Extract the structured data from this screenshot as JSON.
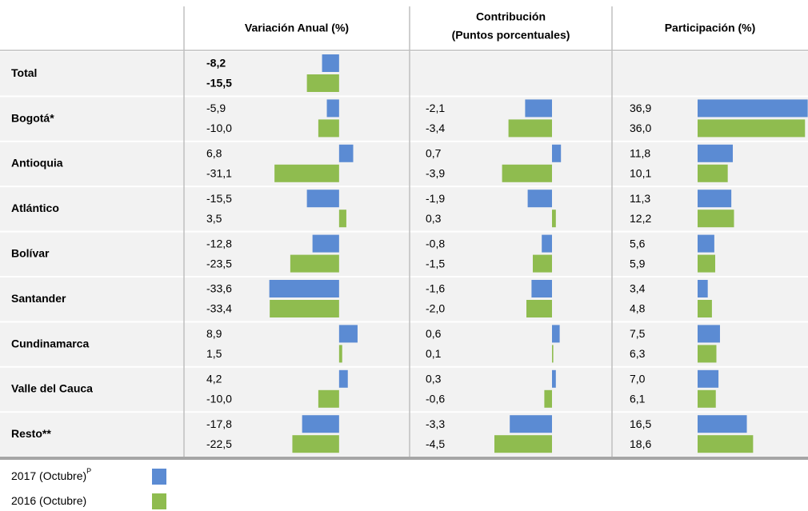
{
  "chart_data": {
    "type": "bar",
    "categories": [
      "Total",
      "Bogotá*",
      "Antioquia",
      "Atlántico",
      "Bolívar",
      "Santander",
      "Cundinamarca",
      "Valle del Cauca",
      "Resto**"
    ],
    "legend": [
      {
        "name": "2017 (Octubre)",
        "sup": "P",
        "color": "#5b8bd3"
      },
      {
        "name": "2016 (Octubre)",
        "color": "#8fbc4f"
      }
    ],
    "panels": [
      {
        "title": "Variación Anual (%)",
        "xlim": [
          -35,
          12
        ],
        "series": [
          {
            "values": [
              -8.2,
              -5.9,
              6.8,
              -15.5,
              -12.8,
              -33.6,
              8.9,
              4.2,
              -17.8
            ],
            "value_labels": [
              "-8,2",
              "-5,9",
              "6,8",
              "-15,5",
              "-12,8",
              "-33,6",
              "8,9",
              "4,2",
              "-17,8"
            ]
          },
          {
            "values": [
              -15.5,
              -10.0,
              -31.1,
              3.5,
              -23.5,
              -33.4,
              1.5,
              -10.0,
              -22.5
            ],
            "value_labels": [
              "-15,5",
              "-10,0",
              "-31,1",
              "3,5",
              "-23,5",
              "-33,4",
              "1,5",
              "-10,0",
              "-22,5"
            ]
          }
        ]
      },
      {
        "title": "Contribución",
        "subtitle": "(Puntos porcentuales)",
        "xlim": [
          -5,
          1.5
        ],
        "series": [
          {
            "values": [
              null,
              -2.1,
              0.7,
              -1.9,
              -0.8,
              -1.6,
              0.6,
              0.3,
              -3.3
            ],
            "value_labels": [
              null,
              "-2,1",
              "0,7",
              "-1,9",
              "-0,8",
              "-1,6",
              "0,6",
              "0,3",
              "-3,3"
            ]
          },
          {
            "values": [
              null,
              -3.4,
              -3.9,
              0.3,
              -1.5,
              -2.0,
              0.1,
              -0.6,
              -4.5
            ],
            "value_labels": [
              null,
              "-3,4",
              "-3,9",
              "0,3",
              "-1,5",
              "-2,0",
              "0,1",
              "-0,6",
              "-4,5"
            ]
          }
        ]
      },
      {
        "title": "Participación (%)",
        "xlim": [
          0,
          37
        ],
        "series": [
          {
            "values": [
              null,
              36.9,
              11.8,
              11.3,
              5.6,
              3.4,
              7.5,
              7.0,
              16.5
            ],
            "value_labels": [
              null,
              "36,9",
              "11,8",
              "11,3",
              "5,6",
              "3,4",
              "7,5",
              "7,0",
              "16,5"
            ]
          },
          {
            "values": [
              null,
              36.0,
              10.1,
              12.2,
              5.9,
              4.8,
              6.3,
              6.1,
              18.6
            ],
            "value_labels": [
              null,
              "36,0",
              "10,1",
              "12,2",
              "5,9",
              "4,8",
              "6,3",
              "6,1",
              "18,6"
            ]
          }
        ]
      }
    ]
  }
}
